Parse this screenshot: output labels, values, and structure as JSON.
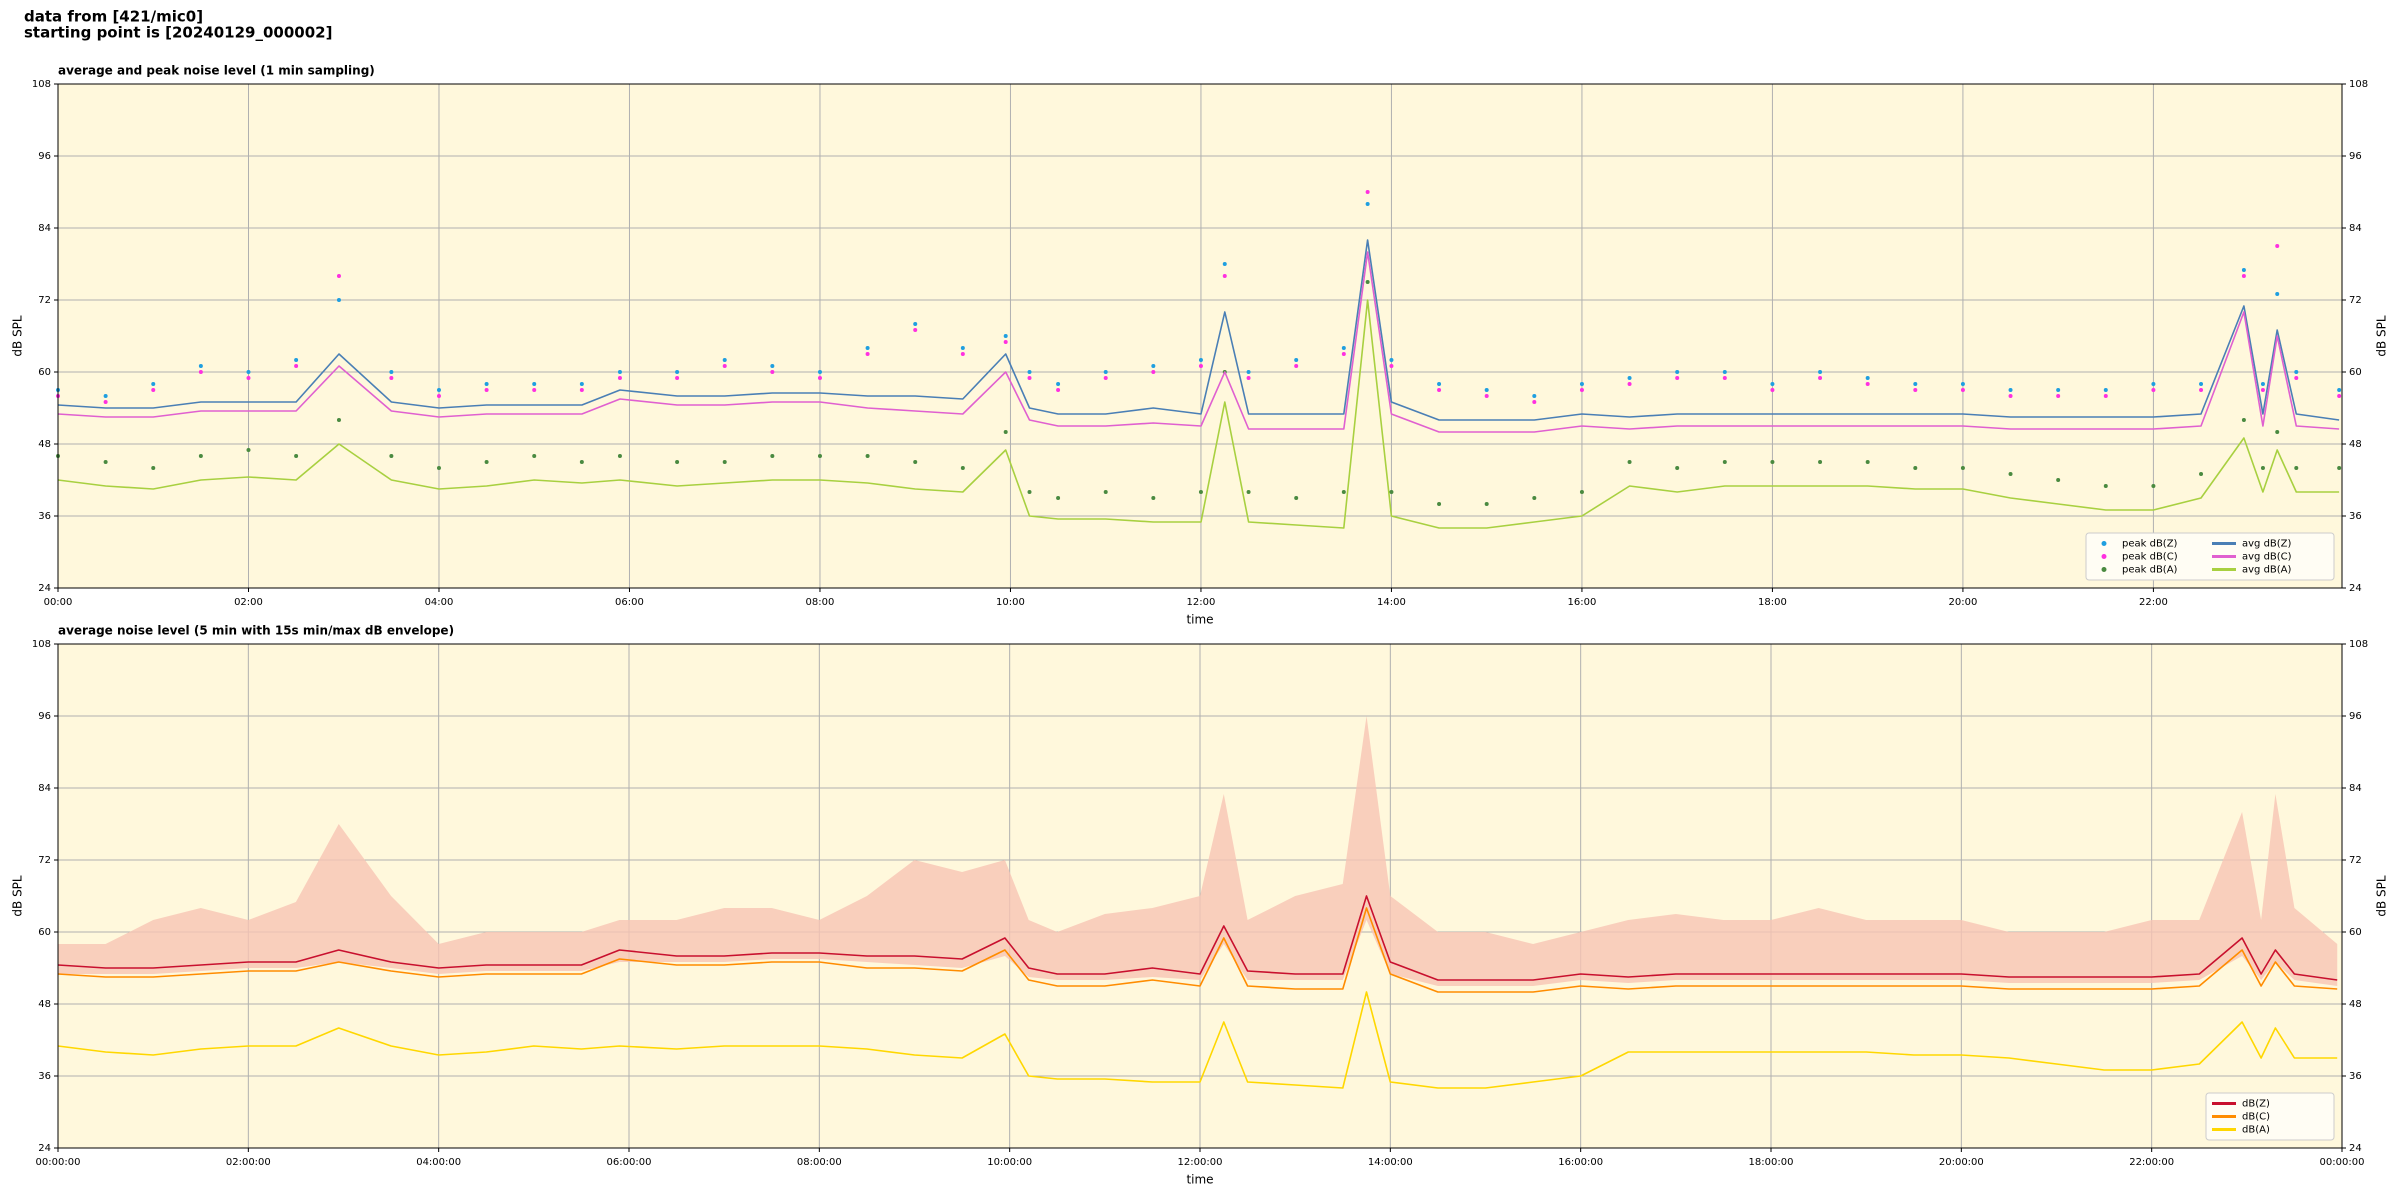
{
  "header": [
    "data from [421/mic0]",
    "starting point is [20240129_000002]"
  ],
  "chart_data": [
    {
      "type": "line",
      "title": "average and peak noise level (1 min sampling)",
      "xlabel": "time",
      "ylabel": "dB SPL",
      "background": "#fff8dc",
      "grid": true,
      "legend": {
        "loc": "lower right",
        "ncol": 2
      },
      "xlim": [
        0,
        23.98
      ],
      "ylim": [
        24,
        108
      ],
      "xticks": [
        {
          "value": 0,
          "label": "00:00"
        },
        {
          "value": 2,
          "label": "02:00"
        },
        {
          "value": 4,
          "label": "04:00"
        },
        {
          "value": 6,
          "label": "06:00"
        },
        {
          "value": 8,
          "label": "08:00"
        },
        {
          "value": 10,
          "label": "10:00"
        },
        {
          "value": 12,
          "label": "12:00"
        },
        {
          "value": 14,
          "label": "14:00"
        },
        {
          "value": 16,
          "label": "16:00"
        },
        {
          "value": 18,
          "label": "18:00"
        },
        {
          "value": 20,
          "label": "20:00"
        },
        {
          "value": 22,
          "label": "22:00"
        }
      ],
      "yticks": [
        24,
        36,
        48,
        60,
        72,
        84,
        96,
        108
      ],
      "x": [
        0,
        0.5,
        1,
        1.5,
        2,
        2.5,
        2.95,
        3.5,
        4,
        4.5,
        5,
        5.5,
        5.9,
        6.5,
        7,
        7.5,
        8,
        8.5,
        9,
        9.5,
        9.95,
        10.2,
        10.5,
        11,
        11.5,
        12,
        12.25,
        12.5,
        13,
        13.5,
        13.75,
        14,
        14.5,
        15,
        15.5,
        16,
        16.5,
        17,
        17.5,
        18,
        18.5,
        19,
        19.5,
        20,
        20.5,
        21,
        21.5,
        22,
        22.5,
        22.95,
        23.15,
        23.3,
        23.5,
        23.95
      ],
      "series": [
        {
          "name": "peak dB(Z)",
          "color": "#1f9fe0",
          "kind": "scatter",
          "values": [
            57,
            56,
            58,
            61,
            60,
            62,
            72,
            60,
            57,
            58,
            58,
            58,
            60,
            60,
            62,
            61,
            60,
            64,
            68,
            64,
            66,
            60,
            58,
            60,
            61,
            62,
            78,
            60,
            62,
            64,
            88,
            62,
            58,
            57,
            56,
            58,
            59,
            60,
            60,
            58,
            60,
            59,
            58,
            58,
            57,
            57,
            57,
            58,
            58,
            77,
            58,
            73,
            60,
            57
          ]
        },
        {
          "name": "peak dB(C)",
          "color": "#ff30e0",
          "kind": "scatter",
          "values": [
            56,
            55,
            57,
            60,
            59,
            61,
            76,
            59,
            56,
            57,
            57,
            57,
            59,
            59,
            61,
            60,
            59,
            63,
            67,
            63,
            65,
            59,
            57,
            59,
            60,
            61,
            76,
            59,
            61,
            63,
            90,
            61,
            57,
            56,
            55,
            57,
            58,
            59,
            59,
            57,
            59,
            58,
            57,
            57,
            56,
            56,
            56,
            57,
            57,
            76,
            57,
            81,
            59,
            56
          ]
        },
        {
          "name": "peak dB(A)",
          "color": "#4a8a40",
          "kind": "scatter",
          "values": [
            46,
            45,
            44,
            46,
            47,
            46,
            52,
            46,
            44,
            45,
            46,
            45,
            46,
            45,
            45,
            46,
            46,
            46,
            45,
            44,
            50,
            40,
            39,
            40,
            39,
            40,
            60,
            40,
            39,
            40,
            75,
            40,
            38,
            38,
            39,
            40,
            45,
            44,
            45,
            45,
            45,
            45,
            44,
            44,
            43,
            42,
            41,
            41,
            43,
            52,
            44,
            50,
            44,
            44
          ]
        },
        {
          "name": "avg dB(Z)",
          "color": "#4a7fb5",
          "kind": "line",
          "values": [
            54.5,
            54,
            54,
            55,
            55,
            55,
            63,
            55,
            54,
            54.5,
            54.5,
            54.5,
            57,
            56,
            56,
            56.5,
            56.5,
            56,
            56,
            55.5,
            63,
            54,
            53,
            53,
            54,
            53,
            70,
            53,
            53,
            53,
            82,
            55,
            52,
            52,
            52,
            53,
            52.5,
            53,
            53,
            53,
            53,
            53,
            53,
            53,
            52.5,
            52.5,
            52.5,
            52.5,
            53,
            71,
            53,
            67,
            53,
            52
          ]
        },
        {
          "name": "avg dB(C)",
          "color": "#e060d0",
          "kind": "line",
          "values": [
            53,
            52.5,
            52.5,
            53.5,
            53.5,
            53.5,
            61,
            53.5,
            52.5,
            53,
            53,
            53,
            55.5,
            54.5,
            54.5,
            55,
            55,
            54,
            53.5,
            53,
            60,
            52,
            51,
            51,
            51.5,
            51,
            60,
            50.5,
            50.5,
            50.5,
            80,
            53,
            50,
            50,
            50,
            51,
            50.5,
            51,
            51,
            51,
            51,
            51,
            51,
            51,
            50.5,
            50.5,
            50.5,
            50.5,
            51,
            70,
            51,
            66,
            51,
            50.5
          ]
        },
        {
          "name": "avg dB(A)",
          "color": "#a8d040",
          "kind": "line",
          "values": [
            42,
            41,
            40.5,
            42,
            42.5,
            42,
            48,
            42,
            40.5,
            41,
            42,
            41.5,
            42,
            41,
            41.5,
            42,
            42,
            41.5,
            40.5,
            40,
            47,
            36,
            35.5,
            35.5,
            35,
            35,
            55,
            35,
            34.5,
            34,
            72,
            36,
            34,
            34,
            35,
            36,
            41,
            40,
            41,
            41,
            41,
            41,
            40.5,
            40.5,
            39,
            38,
            37,
            37,
            39,
            49,
            40,
            47,
            40,
            40
          ]
        }
      ]
    },
    {
      "type": "line",
      "title": "average noise level (5 min with 15s min/max dB envelope)",
      "xlabel": "time",
      "ylabel": "dB SPL",
      "background": "#fff8dc",
      "grid": true,
      "legend": {
        "loc": "lower right",
        "ncol": 1
      },
      "xlim": [
        0,
        24
      ],
      "ylim": [
        24,
        108
      ],
      "xticks": [
        {
          "value": 0,
          "label": "00:00:00"
        },
        {
          "value": 2,
          "label": "02:00:00"
        },
        {
          "value": 4,
          "label": "04:00:00"
        },
        {
          "value": 6,
          "label": "06:00:00"
        },
        {
          "value": 8,
          "label": "08:00:00"
        },
        {
          "value": 10,
          "label": "10:00:00"
        },
        {
          "value": 12,
          "label": "12:00:00"
        },
        {
          "value": 14,
          "label": "14:00:00"
        },
        {
          "value": 16,
          "label": "16:00:00"
        },
        {
          "value": 18,
          "label": "18:00:00"
        },
        {
          "value": 20,
          "label": "20:00:00"
        },
        {
          "value": 22,
          "label": "22:00:00"
        },
        {
          "value": 24,
          "label": "00:00:00"
        }
      ],
      "yticks": [
        24,
        36,
        48,
        60,
        72,
        84,
        96,
        108
      ],
      "x": [
        0,
        0.5,
        1,
        1.5,
        2,
        2.5,
        2.95,
        3.5,
        4,
        4.5,
        5,
        5.5,
        5.9,
        6.5,
        7,
        7.5,
        8,
        8.5,
        9,
        9.5,
        9.95,
        10.2,
        10.5,
        11,
        11.5,
        12,
        12.25,
        12.5,
        13,
        13.5,
        13.75,
        14,
        14.5,
        15,
        15.5,
        16,
        16.5,
        17,
        17.5,
        18,
        18.5,
        19,
        19.5,
        20,
        20.5,
        21,
        21.5,
        22,
        22.5,
        22.95,
        23.15,
        23.3,
        23.5,
        23.95
      ],
      "envelope": {
        "color": "#f7c4b4",
        "upper": [
          58,
          58,
          62,
          64,
          62,
          65,
          78,
          66,
          58,
          60,
          60,
          60,
          62,
          62,
          64,
          64,
          62,
          66,
          72,
          70,
          72,
          62,
          60,
          63,
          64,
          66,
          83,
          62,
          66,
          68,
          96,
          66,
          60,
          60,
          58,
          60,
          62,
          63,
          62,
          62,
          64,
          62,
          62,
          62,
          60,
          60,
          60,
          62,
          62,
          80,
          62,
          83,
          64,
          58
        ],
        "lower": [
          53,
          53,
          53,
          53.5,
          54,
          54,
          55,
          54,
          53,
          53.5,
          53.5,
          53.5,
          55,
          55,
          55,
          55.5,
          55.5,
          55,
          54.5,
          54,
          56,
          52.5,
          52,
          52,
          52.5,
          52,
          58,
          52,
          52,
          52,
          62,
          53,
          51,
          51,
          51,
          52,
          51.5,
          52,
          52,
          52,
          52,
          52,
          52,
          52,
          51.5,
          51.5,
          51.5,
          51.5,
          52,
          56,
          52,
          55,
          52,
          51
        ]
      },
      "series": [
        {
          "name": "dB(Z)",
          "color": "#c8102e",
          "kind": "line",
          "values": [
            54.5,
            54,
            54,
            54.5,
            55,
            55,
            57,
            55,
            54,
            54.5,
            54.5,
            54.5,
            57,
            56,
            56,
            56.5,
            56.5,
            56,
            56,
            55.5,
            59,
            54,
            53,
            53,
            54,
            53,
            61,
            53.5,
            53,
            53,
            66,
            55,
            52,
            52,
            52,
            53,
            52.5,
            53,
            53,
            53,
            53,
            53,
            53,
            53,
            52.5,
            52.5,
            52.5,
            52.5,
            53,
            59,
            53,
            57,
            53,
            52
          ]
        },
        {
          "name": "dB(C)",
          "color": "#ff8c00",
          "kind": "line",
          "values": [
            53,
            52.5,
            52.5,
            53,
            53.5,
            53.5,
            55,
            53.5,
            52.5,
            53,
            53,
            53,
            55.5,
            54.5,
            54.5,
            55,
            55,
            54,
            54,
            53.5,
            57,
            52,
            51,
            51,
            52,
            51,
            59,
            51,
            50.5,
            50.5,
            64,
            53,
            50,
            50,
            50,
            51,
            50.5,
            51,
            51,
            51,
            51,
            51,
            51,
            51,
            50.5,
            50.5,
            50.5,
            50.5,
            51,
            57,
            51,
            55,
            51,
            50.5
          ]
        },
        {
          "name": "dB(A)",
          "color": "#ffd700",
          "kind": "line",
          "values": [
            41,
            40,
            39.5,
            40.5,
            41,
            41,
            44,
            41,
            39.5,
            40,
            41,
            40.5,
            41,
            40.5,
            41,
            41,
            41,
            40.5,
            39.5,
            39,
            43,
            36,
            35.5,
            35.5,
            35,
            35,
            45,
            35,
            34.5,
            34,
            50,
            35,
            34,
            34,
            35,
            36,
            40,
            40,
            40,
            40,
            40,
            40,
            39.5,
            39.5,
            39,
            38,
            37,
            37,
            38,
            45,
            39,
            44,
            39,
            39
          ]
        }
      ]
    }
  ]
}
